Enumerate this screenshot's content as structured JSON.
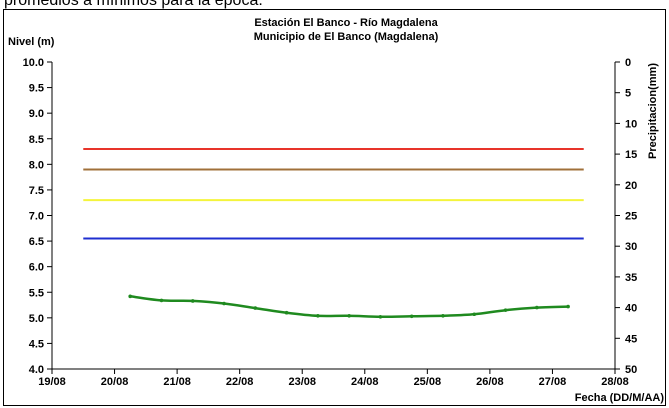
{
  "header": {
    "text": "promedios a mínimos para la época."
  },
  "chart_data": {
    "type": "line",
    "title": "Estación El Banco - Río Magdalena",
    "subtitle": "Municipio de El Banco (Magdalena)",
    "ylabel": "Nivel (m)",
    "y2label": "Precipitacion(mm)",
    "xlabel": "Fecha (DD/M/AA)",
    "ylim": [
      4.0,
      10.0
    ],
    "y2lim": [
      0,
      50
    ],
    "y2_inverted": true,
    "xlim": [
      0,
      9
    ],
    "yticks": [
      "10.0",
      "9.5",
      "9.0",
      "8.5",
      "8.0",
      "7.5",
      "7.0",
      "6.5",
      "6.0",
      "5.5",
      "5.0",
      "4.5",
      "4.0"
    ],
    "y2ticks": [
      "0",
      "5",
      "10",
      "15",
      "20",
      "25",
      "30",
      "35",
      "40",
      "45",
      "50"
    ],
    "xticks": [
      "19/08",
      "20/08",
      "21/08",
      "22/08",
      "23/08",
      "24/08",
      "25/08",
      "26/08",
      "27/08",
      "28/08"
    ],
    "grid": false,
    "thresholds": [
      {
        "value": 8.3,
        "color": "#e8342a",
        "x": [
          0.5,
          8.5
        ]
      },
      {
        "value": 7.9,
        "color": "#a0703a",
        "x": [
          0.5,
          8.5
        ]
      },
      {
        "value": 7.3,
        "color": "#f4f43c",
        "x": [
          0.5,
          8.5
        ]
      },
      {
        "value": 6.55,
        "color": "#1f2fd0",
        "x": [
          0.5,
          8.5
        ]
      }
    ],
    "series": [
      {
        "color": "#1f8a1f",
        "x": [
          1.25,
          1.75,
          2.25,
          2.75,
          3.25,
          3.75,
          4.25,
          4.75,
          5.25,
          5.75,
          6.25,
          6.75,
          7.25,
          7.75,
          8.25
        ],
        "y": [
          5.42,
          5.34,
          5.33,
          5.28,
          5.19,
          5.1,
          5.04,
          5.04,
          5.02,
          5.03,
          5.04,
          5.07,
          5.15,
          5.2,
          5.22
        ]
      }
    ]
  }
}
